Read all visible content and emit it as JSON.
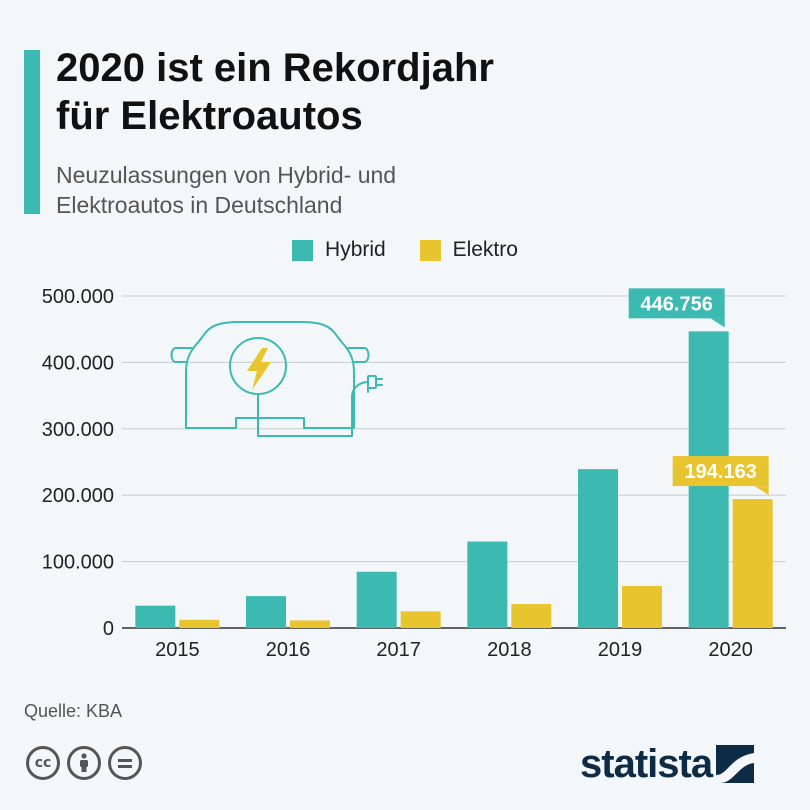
{
  "header": {
    "title_line1": "2020 ist ein Rekordjahr",
    "title_line2": "für Elektroautos",
    "subtitle_line1": "Neuzulassungen von Hybrid- und",
    "subtitle_line2": "Elektroautos in Deutschland"
  },
  "colors": {
    "accent": "#3cbab2",
    "hybrid": "#3cbab2",
    "elektro": "#e8c42f",
    "grid": "#c8cdd2",
    "brand": "#0d2b45"
  },
  "chart_data": {
    "type": "bar",
    "categories": [
      "2015",
      "2016",
      "2017",
      "2018",
      "2019",
      "2020"
    ],
    "series": [
      {
        "name": "Hybrid",
        "color": "#3cbab2",
        "values": [
          33630,
          47996,
          84675,
          130258,
          239250,
          446756
        ]
      },
      {
        "name": "Elektro",
        "color": "#e8c42f",
        "values": [
          12363,
          11410,
          25056,
          36062,
          63281,
          194163
        ]
      }
    ],
    "ylim": [
      0,
      500000
    ],
    "yticks": [
      0,
      100000,
      200000,
      300000,
      400000,
      500000
    ],
    "ytick_labels": [
      "0",
      "100.000",
      "200.000",
      "300.000",
      "400.000",
      "500.000"
    ],
    "annotations": [
      {
        "series": "Hybrid",
        "category": "2020",
        "text": "446.756"
      },
      {
        "series": "Elektro",
        "category": "2020",
        "text": "194.163"
      }
    ],
    "grid": true,
    "legend_position": "top-center"
  },
  "footer": {
    "source": "Quelle: KBA",
    "brand": "statista",
    "cc_icons": [
      "cc-icon",
      "by-icon",
      "nd-icon"
    ]
  }
}
